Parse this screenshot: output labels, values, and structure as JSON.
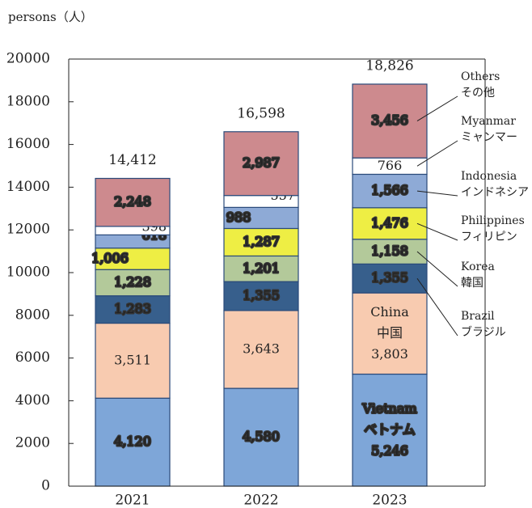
{
  "chart_data": {
    "type": "stacked_bar",
    "y_axis_label": "persons（人）",
    "categories": [
      "2021",
      "2022",
      "2023"
    ],
    "ylim": [
      0,
      20000
    ],
    "yticks": [
      0,
      2000,
      4000,
      6000,
      8000,
      10000,
      12000,
      14000,
      16000,
      18000,
      20000
    ],
    "totals": [
      14412,
      16598,
      18826
    ],
    "total_labels": [
      "14,412",
      "16,598",
      "18,826"
    ],
    "series": [
      {
        "name": "Vietnam",
        "name_ja": "ベトナム",
        "color": "#7ea6d8",
        "label_color": "#ffffff",
        "label_inside": true,
        "values": [
          4120,
          4580,
          5246
        ],
        "value_labels": [
          "4,120",
          "4,580",
          "5,246"
        ]
      },
      {
        "name": "China",
        "name_ja": "中国",
        "color": "#f8cbb0",
        "label_color": "#333333",
        "label_inside": true,
        "values": [
          3511,
          3643,
          3803
        ],
        "value_labels": [
          "3,511",
          "3,643",
          "3,803"
        ]
      },
      {
        "name": "Brazil",
        "name_ja": "ブラジル",
        "color": "#375f8c",
        "label_color": "#ffffff",
        "values": [
          1283,
          1355,
          1355
        ],
        "value_labels": [
          "1,283",
          "1,355",
          "1,355"
        ]
      },
      {
        "name": "Korea",
        "name_ja": "韓国",
        "color": "#b3c99a",
        "label_color": "#ffffff",
        "values": [
          1228,
          1201,
          1158
        ],
        "value_labels": [
          "1,228",
          "1,201",
          "1,158"
        ]
      },
      {
        "name": "Philippines",
        "name_ja": "フィリピン",
        "color": "#eeee44",
        "label_color": "#ffffff",
        "values": [
          1006,
          1287,
          1476
        ],
        "value_labels": [
          "1,006",
          "1,287",
          "1,476"
        ]
      },
      {
        "name": "Indonesia",
        "name_ja": "インドネシア",
        "color": "#8eaad6",
        "label_color": "#ffffff",
        "values": [
          618,
          988,
          1566
        ],
        "value_labels": [
          "618",
          "988",
          "1,566"
        ]
      },
      {
        "name": "Myanmar",
        "name_ja": "ミャンマー",
        "color": "#ffffff",
        "label_color": "#333333",
        "values": [
          398,
          557,
          766
        ],
        "value_labels": [
          "398",
          "557",
          "766"
        ]
      },
      {
        "name": "Others",
        "name_ja": "その他",
        "color": "#cd8a8e",
        "label_color": "#ffffff",
        "values": [
          2248,
          2987,
          3456
        ],
        "value_labels": [
          "2,248",
          "2,987",
          "3,456"
        ]
      }
    ]
  }
}
